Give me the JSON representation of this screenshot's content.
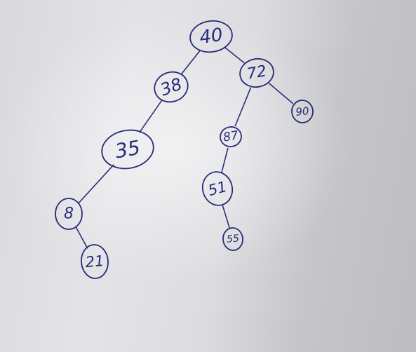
{
  "diagram": {
    "type": "binary-search-tree",
    "ink_color": "#262c78",
    "nodes": [
      {
        "id": "n40",
        "label": "40"
      },
      {
        "id": "n38",
        "label": "38"
      },
      {
        "id": "n72",
        "label": "72"
      },
      {
        "id": "n35",
        "label": "35"
      },
      {
        "id": "n87",
        "label": "87"
      },
      {
        "id": "n90",
        "label": "90"
      },
      {
        "id": "n8",
        "label": "8"
      },
      {
        "id": "n51",
        "label": "51"
      },
      {
        "id": "n21",
        "label": "21"
      },
      {
        "id": "n55",
        "label": "55"
      }
    ],
    "edges": [
      {
        "from": "n40",
        "to": "n38"
      },
      {
        "from": "n40",
        "to": "n72"
      },
      {
        "from": "n38",
        "to": "n35"
      },
      {
        "from": "n72",
        "to": "n87"
      },
      {
        "from": "n72",
        "to": "n90"
      },
      {
        "from": "n35",
        "to": "n8"
      },
      {
        "from": "n87",
        "to": "n51"
      },
      {
        "from": "n8",
        "to": "n21"
      },
      {
        "from": "n51",
        "to": "n55"
      }
    ]
  }
}
